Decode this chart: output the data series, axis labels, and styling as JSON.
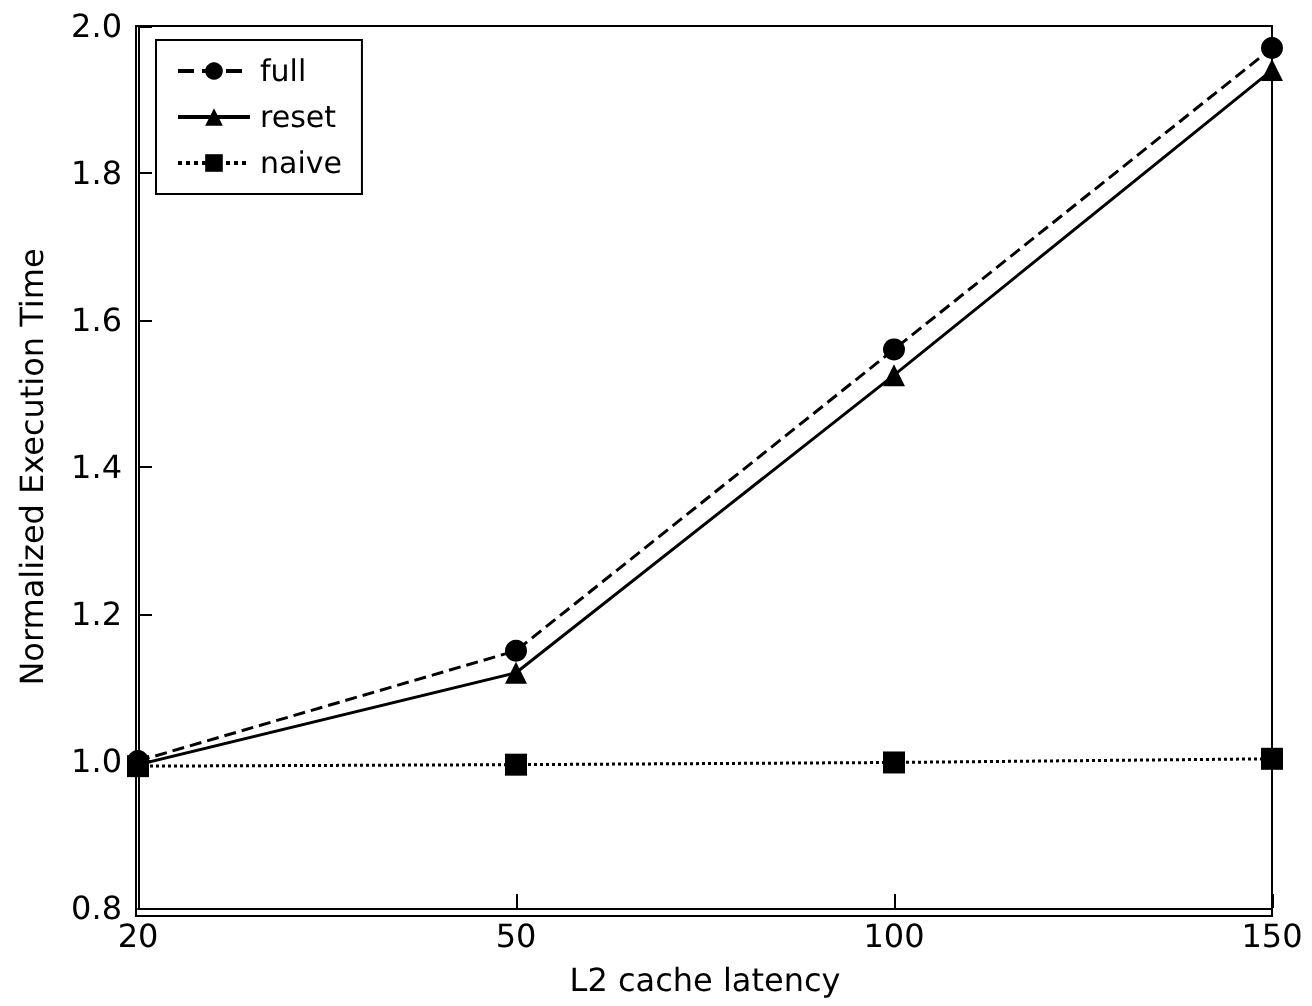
{
  "chart_data": {
    "type": "line",
    "xlabel": "L2 cache latency",
    "ylabel": "Normalized Execution Time",
    "categories": [
      "20",
      "50",
      "100",
      "150"
    ],
    "series": [
      {
        "name": "full",
        "color": "#000000",
        "marker": "circle",
        "line_style": "dashed",
        "values": [
          1.0,
          1.15,
          1.56,
          1.97
        ]
      },
      {
        "name": "reset",
        "color": "#000000",
        "marker": "triangle",
        "line_style": "solid",
        "values": [
          0.995,
          1.12,
          1.525,
          1.94
        ]
      },
      {
        "name": "naive",
        "color": "#000000",
        "marker": "square",
        "line_style": "dotted",
        "values": [
          0.993,
          0.995,
          0.998,
          1.003
        ]
      }
    ],
    "ylim": [
      0.8,
      2.0
    ],
    "yticks": [
      0.8,
      {
        "value": 1.0,
        "label": "1.0"
      },
      1.2,
      1.4,
      1.6,
      1.8,
      {
        "value": 2.0,
        "label": "2.0"
      }
    ],
    "grid": false,
    "legend": "top left"
  }
}
